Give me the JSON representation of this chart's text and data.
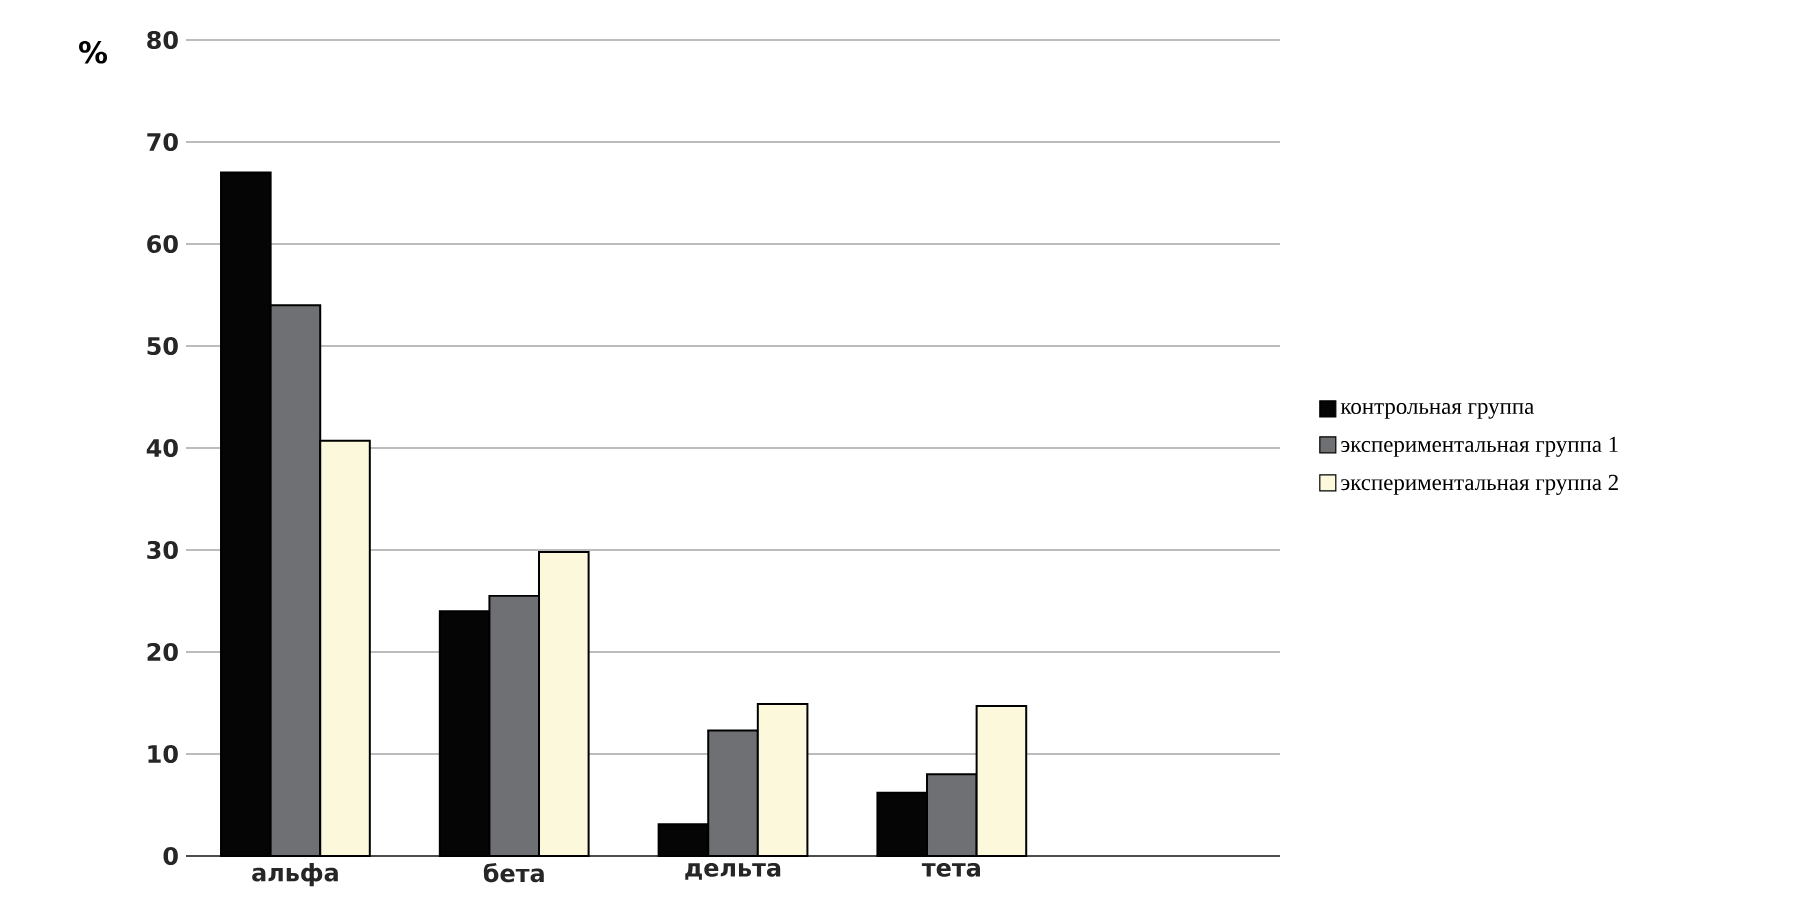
{
  "chart_data": {
    "type": "bar",
    "ylabel": "%",
    "categories": [
      "альфа",
      "бета",
      "дельта",
      "тета",
      null
    ],
    "series": [
      {
        "name": "контрольная группа",
        "color": "#050505",
        "values": [
          67,
          24,
          3.1,
          6.2,
          null
        ]
      },
      {
        "name": "экспериментальная группа 1",
        "color": "#6e7073",
        "values": [
          54,
          25.5,
          12.3,
          8,
          null
        ]
      },
      {
        "name": "экспериментальная группа 2",
        "color": "#fbf8dc",
        "values": [
          40.7,
          29.8,
          14.9,
          14.7,
          null
        ]
      }
    ],
    "ylim": [
      0,
      80
    ],
    "yticks": [
      0,
      10,
      20,
      30,
      40,
      50,
      60,
      70,
      80
    ],
    "grid": "y",
    "legend": "right"
  }
}
